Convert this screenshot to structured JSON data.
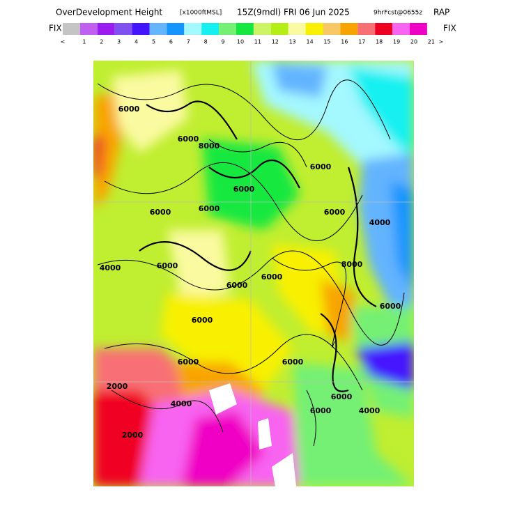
{
  "header": {
    "title": "OverDevelopment Height",
    "units": "[x1000ftMSL]",
    "valid": "15Z(9mdl) FRI 06 Jun 2025",
    "forecast": "9hrFcst@0655z",
    "model": "RAP"
  },
  "legend": {
    "left": "FIX",
    "right": "FIX",
    "colors": [
      "#c4c4c4",
      "#c060f0",
      "#9a1cf0",
      "#8050f0",
      "#4414ff",
      "#64b4ff",
      "#1494ff",
      "#a4f8ff",
      "#14f0f0",
      "#74f074",
      "#14e840",
      "#ccf464",
      "#b4ee14",
      "#fafaa0",
      "#f8f000",
      "#f8c864",
      "#f8a400",
      "#f87074",
      "#f00020",
      "#f864f0",
      "#f000c4"
    ],
    "labels": [
      "<",
      "1",
      "2",
      "3",
      "4",
      "5",
      "6",
      "7",
      "8",
      "9",
      "10",
      "11",
      "12",
      "13",
      "14",
      "15",
      "16",
      "17",
      "18",
      "19",
      "20",
      "21",
      ">"
    ]
  },
  "map": {
    "contour_labels": [
      "6000",
      "6000",
      "6000",
      "6000",
      "6000",
      "6000",
      "8000",
      "6000",
      "4000",
      "6000",
      "6000",
      "8000",
      "6000",
      "6000",
      "4000",
      "6000",
      "2000",
      "6000",
      "6000",
      "2000",
      "4000",
      "6000",
      "6000",
      "4000"
    ]
  }
}
